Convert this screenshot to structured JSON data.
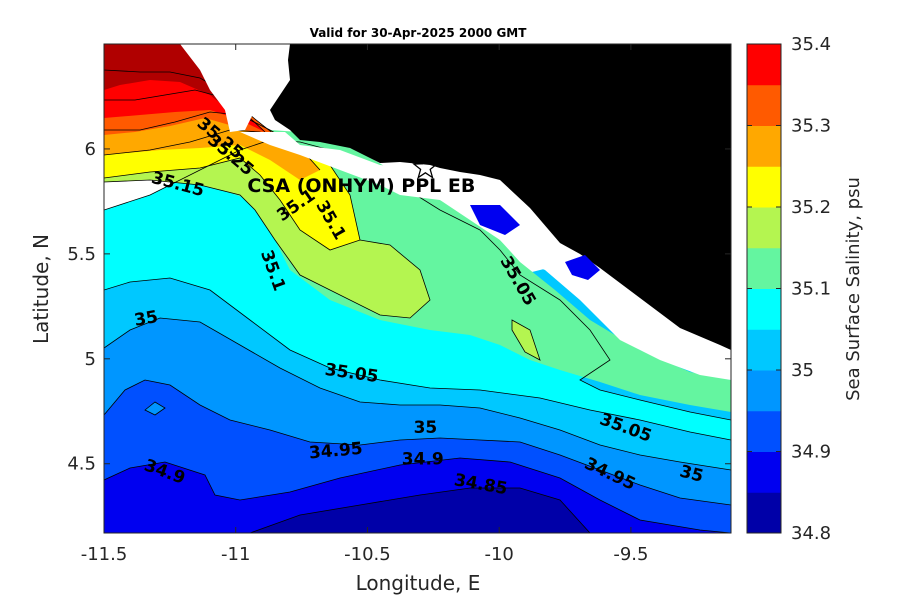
{
  "chart_data": {
    "type": "heatmap",
    "subtype": "filled-contour-map",
    "title": "Valid for 30-Apr-2025 2000 GMT",
    "xlabel": "Longitude, E",
    "ylabel": "Latitude, N",
    "xlim": [
      -11.5,
      -9.12
    ],
    "ylim": [
      4.17,
      6.5
    ],
    "xticks": [
      "-11.5",
      "-11",
      "-10.5",
      "-10",
      "-9.5"
    ],
    "xtick_values": [
      -11.5,
      -11,
      -10.5,
      -10,
      -9.5
    ],
    "yticks": [
      "4.5",
      "5",
      "5.5",
      "6"
    ],
    "ytick_values": [
      4.5,
      5,
      5.5,
      6
    ],
    "colorbar": {
      "label": "Sea Surface Salinity, psu",
      "levels": [
        34.8,
        34.85,
        34.9,
        34.95,
        35,
        35.05,
        35.1,
        35.15,
        35.2,
        35.25,
        35.3,
        35.35,
        35.4
      ],
      "colors": [
        "#0000a8",
        "#0000f0",
        "#0050ff",
        "#0096ff",
        "#00c8ff",
        "#00ffff",
        "#64f5a0",
        "#b4f550",
        "#ffff00",
        "#ffa800",
        "#ff5a00",
        "#ff0000",
        "#b00000"
      ],
      "tick_values": [
        34.8,
        34.9,
        35,
        35.1,
        35.2,
        35.3,
        35.4
      ],
      "tick_labels": [
        "34.8",
        "34.9",
        "35",
        "35.1",
        "35.2",
        "35.3",
        "35.4"
      ]
    },
    "contour_labels": [
      {
        "text": "35.25",
        "lon": -11.06,
        "lat": 6.05,
        "rot": 40
      },
      {
        "text": "35.25",
        "lon": -11.02,
        "lat": 5.97,
        "rot": 40
      },
      {
        "text": "35.15",
        "lon": -11.22,
        "lat": 5.83,
        "rot": 15
      },
      {
        "text": "35.1",
        "lon": -10.77,
        "lat": 5.73,
        "rot": -35
      },
      {
        "text": "35.1",
        "lon": -10.64,
        "lat": 5.66,
        "rot": 60
      },
      {
        "text": "35.1",
        "lon": -10.86,
        "lat": 5.42,
        "rot": 70
      },
      {
        "text": "35.05",
        "lon": -9.93,
        "lat": 5.37,
        "rot": 60
      },
      {
        "text": "35",
        "lon": -11.34,
        "lat": 5.19,
        "rot": -10
      },
      {
        "text": "35.05",
        "lon": -10.56,
        "lat": 4.93,
        "rot": 8
      },
      {
        "text": "35",
        "lon": -10.28,
        "lat": 4.67,
        "rot": 0
      },
      {
        "text": "35.05",
        "lon": -9.52,
        "lat": 4.67,
        "rot": 20
      },
      {
        "text": "34.95",
        "lon": -10.62,
        "lat": 4.56,
        "rot": -5
      },
      {
        "text": "34.9",
        "lon": -10.29,
        "lat": 4.52,
        "rot": 0
      },
      {
        "text": "34.95",
        "lon": -9.58,
        "lat": 4.45,
        "rot": 25
      },
      {
        "text": "35",
        "lon": -9.27,
        "lat": 4.45,
        "rot": 15
      },
      {
        "text": "34.9",
        "lon": -11.27,
        "lat": 4.46,
        "rot": 20
      },
      {
        "text": "34.85",
        "lon": -10.07,
        "lat": 4.4,
        "rot": 10
      }
    ],
    "station": {
      "label": "CSA (ONHYM) PPL EB",
      "lon": -10.28,
      "lat": 5.91
    },
    "grid": false,
    "land_color": "#000000"
  }
}
